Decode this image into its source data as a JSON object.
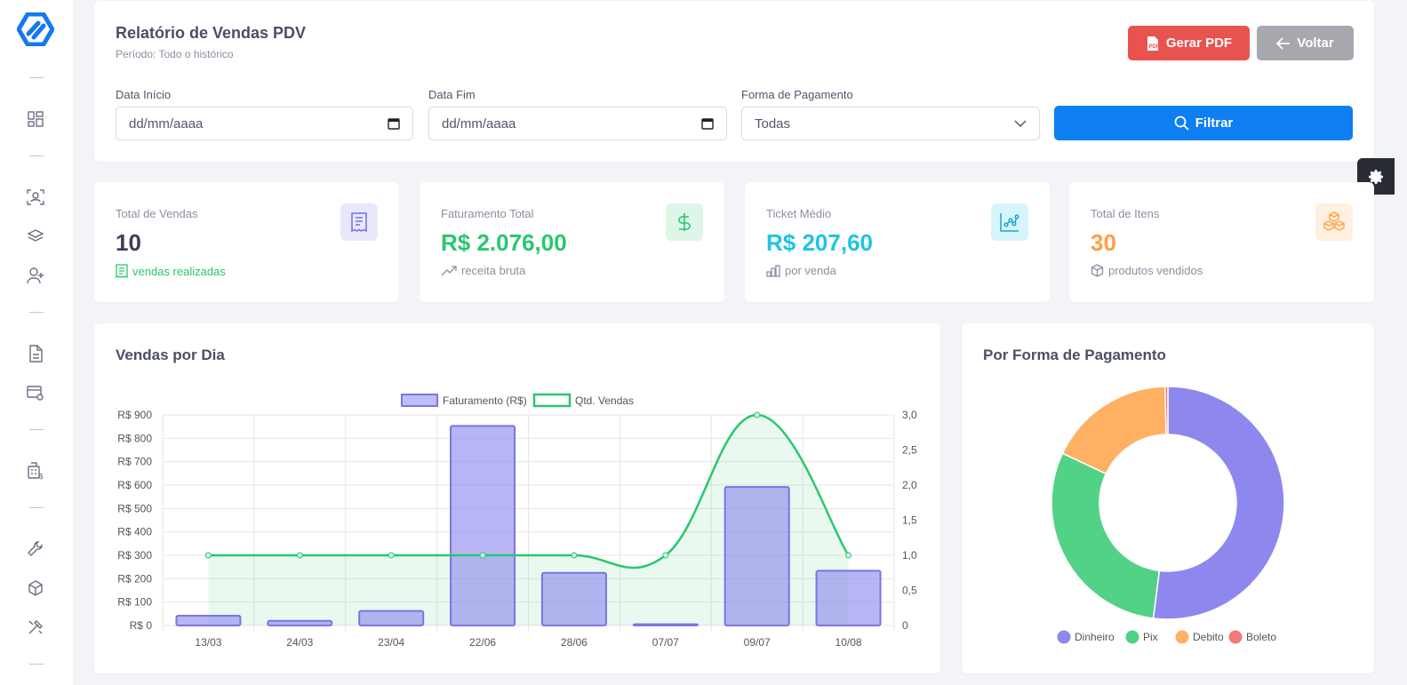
{
  "header": {
    "title": "Relatório de Vendas PDV",
    "subtitle": "Período: Todo o histórico",
    "pdf_label": "Gerar PDF",
    "back_label": "Voltar"
  },
  "filters": {
    "start_label": "Data Início",
    "start_placeholder": "dd/mm/aaaa",
    "end_label": "Data Fim",
    "end_placeholder": "dd/mm/aaaa",
    "payment_label": "Forma de Pagamento",
    "payment_value": "Todas",
    "filter_label": "Filtrar"
  },
  "stats": [
    {
      "label": "Total de Vendas",
      "value": "10",
      "sub": "vendas realizadas",
      "color": "#3b3f5c",
      "sub_color": "#28c76f",
      "icon": "receipt-icon",
      "icon_bg": "#e8e8fb",
      "icon_color": "#6f6fe8"
    },
    {
      "label": "Faturamento Total",
      "value": "R$ 2.076,00",
      "sub": "receita bruta",
      "color": "#28c76f",
      "sub_color": "#8c8fa0",
      "icon": "dollar-icon",
      "icon_bg": "#def6e8",
      "icon_color": "#28c76f"
    },
    {
      "label": "Ticket Médio",
      "value": "R$ 207,60",
      "sub": "por venda",
      "color": "#1fc3e6",
      "sub_color": "#8c8fa0",
      "icon": "chart-icon",
      "icon_bg": "#d6f5fb",
      "icon_color": "#1aa6c7"
    },
    {
      "label": "Total de Itens",
      "value": "30",
      "sub": "produtos vendidos",
      "color": "#ff9f43",
      "sub_color": "#8c8fa0",
      "icon": "boxes-icon",
      "icon_bg": "#fff0e1",
      "icon_color": "#ff9f43"
    }
  ],
  "charts": {
    "daily_title": "Vendas por Dia",
    "payment_title": "Por Forma de Pagamento"
  },
  "chart_data": [
    {
      "type": "bar",
      "title": "Vendas por Dia",
      "categories": [
        "13/03",
        "24/03",
        "23/04",
        "22/06",
        "28/06",
        "07/07",
        "09/07",
        "10/08"
      ],
      "series": [
        {
          "name": "Faturamento (R$)",
          "type": "bar",
          "axis": "left",
          "color": "#8d87ee",
          "values": [
            42,
            20,
            62,
            853,
            225,
            5,
            592,
            234
          ]
        },
        {
          "name": "Qtd. Vendas",
          "type": "line",
          "axis": "right",
          "color": "#28c76f",
          "values": [
            1,
            1,
            1,
            1,
            1,
            1,
            3,
            1
          ]
        }
      ],
      "y_left": {
        "min": 0,
        "max": 900,
        "ticks": [
          0,
          100,
          200,
          300,
          400,
          500,
          600,
          700,
          800,
          900
        ],
        "tick_labels": [
          "R$ 0",
          "R$ 100",
          "R$ 200",
          "R$ 300",
          "R$ 400",
          "R$ 500",
          "R$ 600",
          "R$ 700",
          "R$ 800",
          "R$ 900"
        ]
      },
      "y_right": {
        "min": 0,
        "max": 3,
        "ticks": [
          0,
          0.5,
          1,
          1.5,
          2,
          2.5,
          3
        ],
        "tick_labels": [
          "0",
          "0,5",
          "1,0",
          "1,5",
          "2,0",
          "2,5",
          "3,0"
        ]
      },
      "grid": true,
      "legend": "top"
    },
    {
      "type": "pie",
      "title": "Por Forma de Pagamento",
      "donut": true,
      "labels": [
        "Dinheiro",
        "Pix",
        "Debito",
        "Boleto"
      ],
      "values": [
        52,
        30,
        17.6,
        0.4
      ],
      "colors": [
        "#8d87ee",
        "#52d286",
        "#ffb063",
        "#f07a7a"
      ],
      "legend": "bottom"
    }
  ]
}
